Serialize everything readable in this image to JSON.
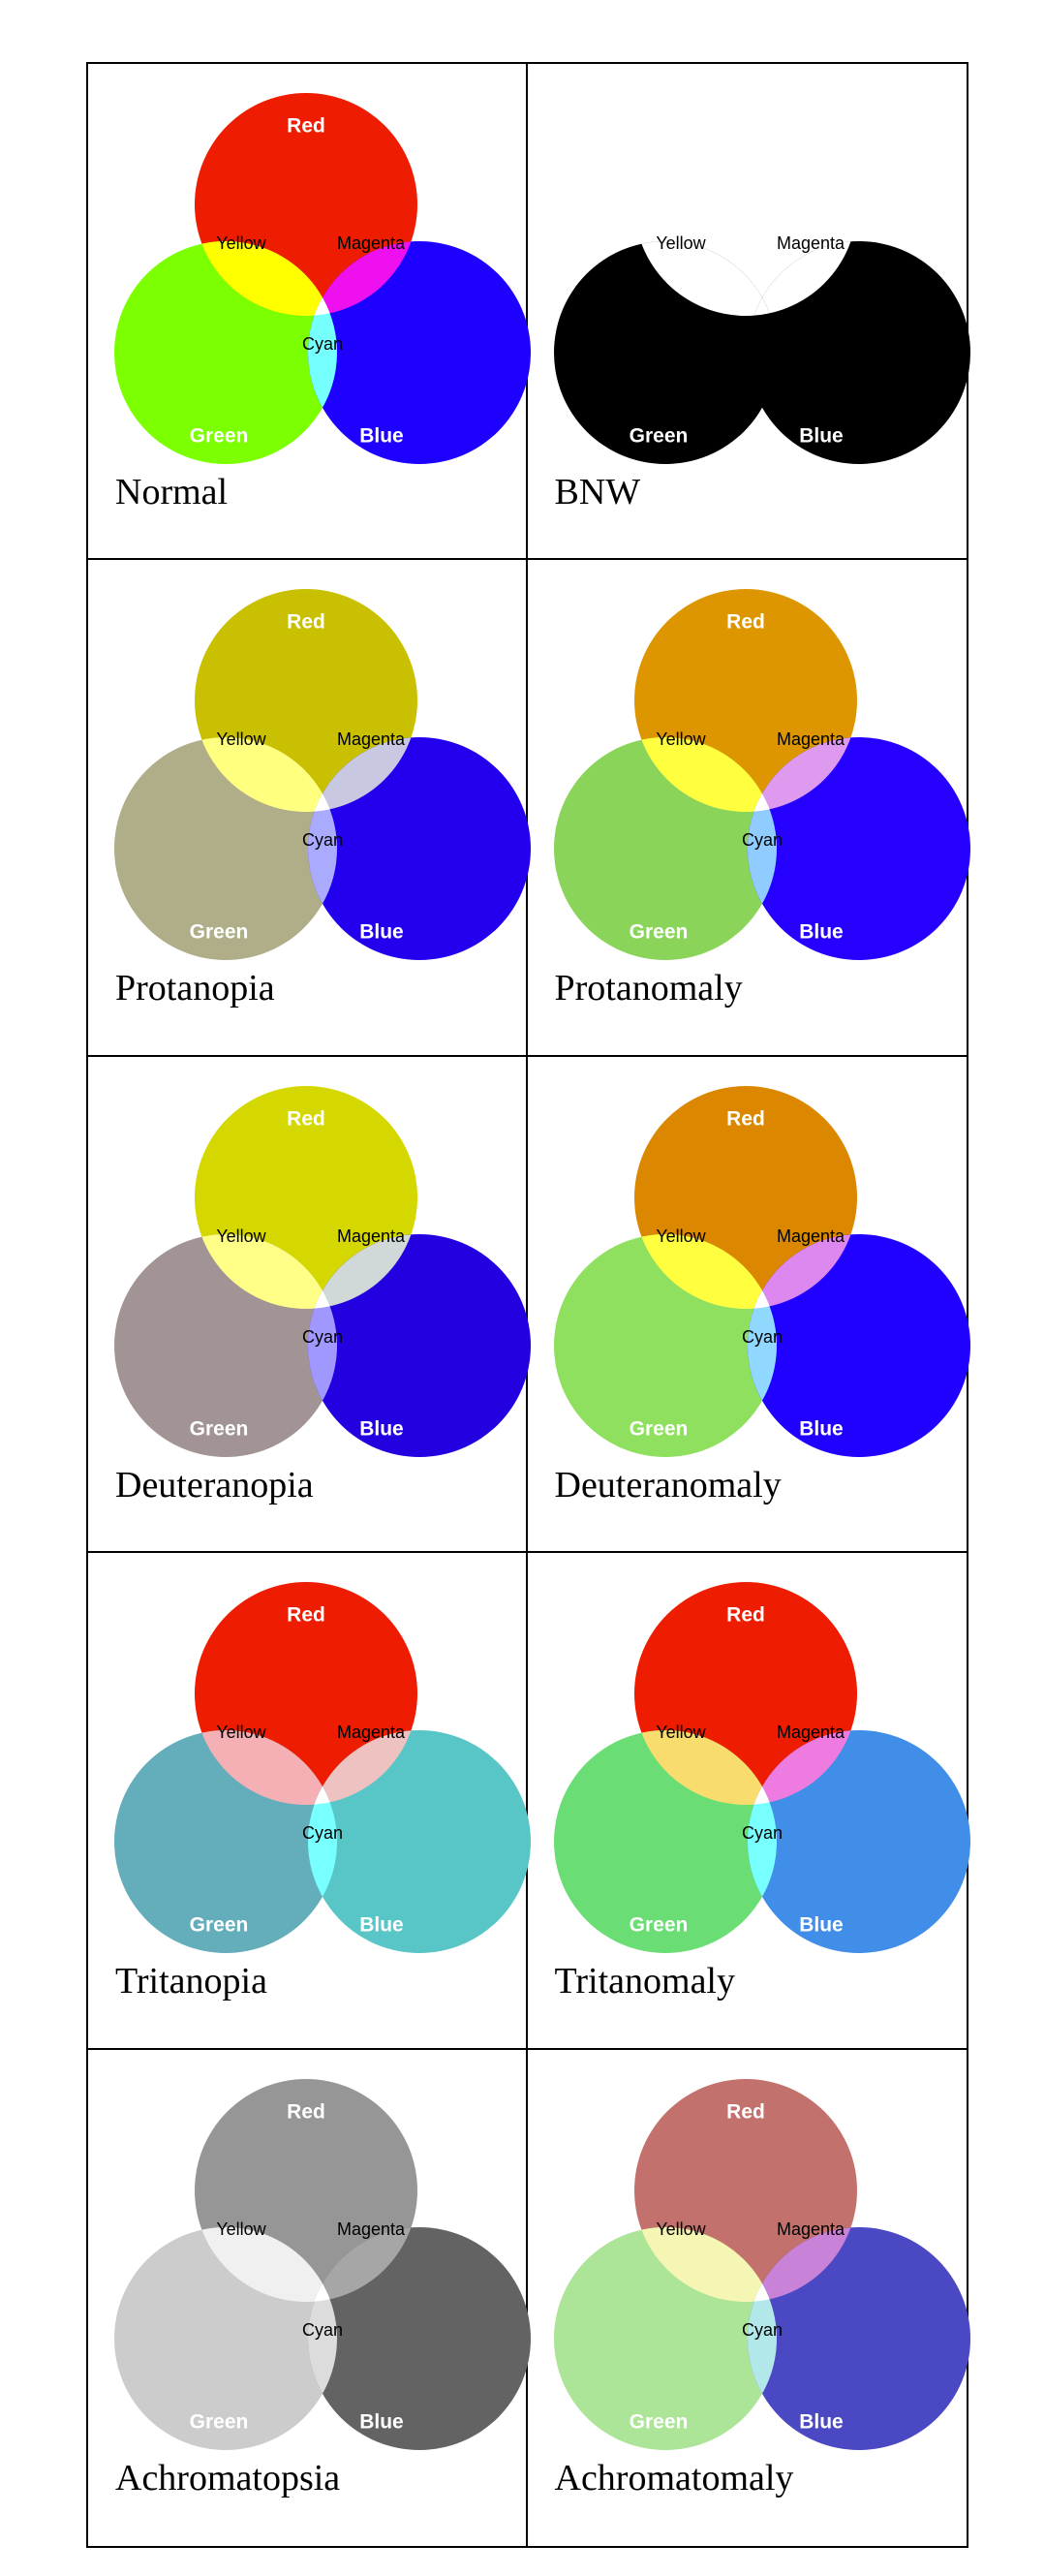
{
  "venn_labels": {
    "red": "Red",
    "yellow": "Yellow",
    "magenta": "Magenta",
    "cyan": "Cyan",
    "green": "Green",
    "blue": "Blue"
  },
  "panels": [
    {
      "title": "Normal",
      "colors": {
        "red": "#ee1c00",
        "green": "#7cff00",
        "blue": "#1e00ff",
        "yellow": "#ffff00",
        "magenta": "#ee10ee",
        "cyan": "#76ffff",
        "white": "#ffffff"
      }
    },
    {
      "title": "BNW",
      "colors": {
        "red": "#ffffff",
        "green": "#000000",
        "blue": "#000000",
        "yellow": "#ffffff",
        "magenta": "#ffffff",
        "cyan": "#000000",
        "white": "#ffffff"
      }
    },
    {
      "title": "Protanopia",
      "colors": {
        "red": "#c8c000",
        "green": "#b0ae88",
        "blue": "#2200ee",
        "yellow": "#ffff80",
        "magenta": "#c8c8e2",
        "cyan": "#aaaaff",
        "white": "#ffffff"
      }
    },
    {
      "title": "Protanomaly",
      "colors": {
        "red": "#dd9600",
        "green": "#8ad45a",
        "blue": "#2600ff",
        "yellow": "#ffff40",
        "magenta": "#dd9aee",
        "cyan": "#90ccff",
        "white": "#ffffff"
      }
    },
    {
      "title": "Deuteranopia",
      "colors": {
        "red": "#d4d800",
        "green": "#a29494",
        "blue": "#2200e0",
        "yellow": "#ffff88",
        "magenta": "#d0d8d8",
        "cyan": "#a098ff",
        "white": "#ffffff"
      }
    },
    {
      "title": "Deuteranomaly",
      "colors": {
        "red": "#db8800",
        "green": "#90e060",
        "blue": "#2000ff",
        "yellow": "#ffff40",
        "magenta": "#dd88ee",
        "cyan": "#90d8ff",
        "white": "#ffffff"
      }
    },
    {
      "title": "Tritanopia",
      "colors": {
        "red": "#ee1c00",
        "green": "#64aebb",
        "blue": "#58c6c6",
        "yellow": "#f4b0b4",
        "magenta": "#eec2c0",
        "cyan": "#78ffff",
        "white": "#ffffff"
      }
    },
    {
      "title": "Tritanomaly",
      "colors": {
        "red": "#ee1c00",
        "green": "#6ade74",
        "blue": "#408ee8",
        "yellow": "#f8dc6e",
        "magenta": "#ee7ce0",
        "cyan": "#78ffff",
        "white": "#ffffff"
      }
    },
    {
      "title": "Achromatopsia",
      "colors": {
        "red": "#969696",
        "green": "#cccccc",
        "blue": "#636363",
        "yellow": "#f0f0f0",
        "magenta": "#a6a6a6",
        "cyan": "#dcdcdc",
        "white": "#ffffff"
      }
    },
    {
      "title": "Achromatomaly",
      "colors": {
        "red": "#c2716c",
        "green": "#ace498",
        "blue": "#4a48c2",
        "yellow": "#f6f6b4",
        "magenta": "#c882d8",
        "cyan": "#b2e8ea",
        "white": "#ffffff"
      }
    }
  ]
}
